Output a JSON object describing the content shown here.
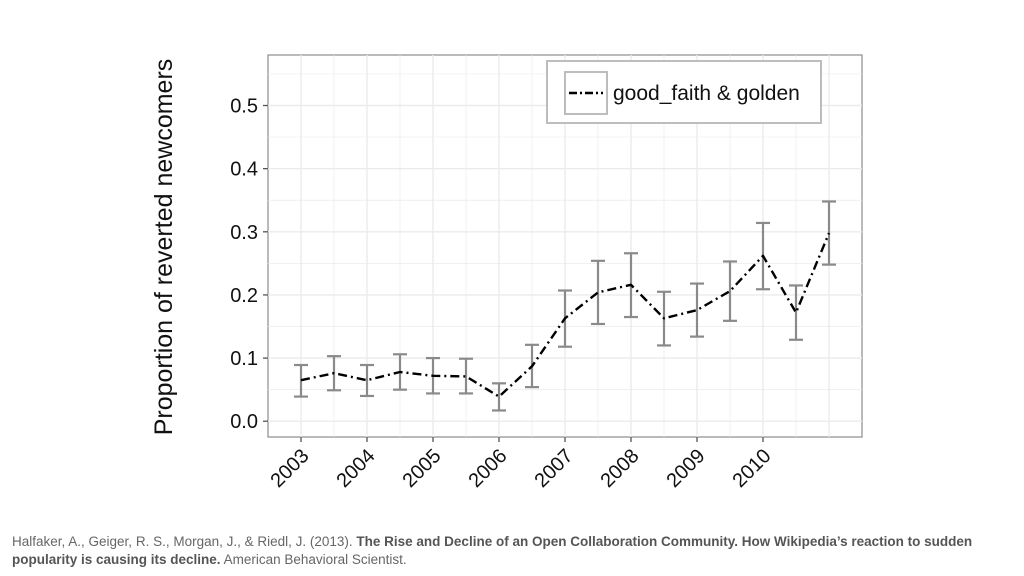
{
  "chart_data": {
    "type": "line",
    "title": "",
    "xlabel": "",
    "ylabel": "Proportion of reverted newcomers",
    "x_tick_labels": [
      "2003",
      "2004",
      "2005",
      "2006",
      "2007",
      "2008",
      "2009",
      "2010"
    ],
    "x": [
      2003,
      2003.5,
      2004,
      2004.5,
      2005,
      2005.5,
      2006,
      2006.5,
      2007,
      2007.5,
      2008,
      2008.5,
      2009,
      2009.5,
      2010,
      2010.5,
      2011
    ],
    "y_ticks": [
      "0.0",
      "0.1",
      "0.2",
      "0.3",
      "0.4",
      "0.5"
    ],
    "ylim": [
      -0.025,
      0.58
    ],
    "xlim": [
      2002.5,
      2011.5
    ],
    "grid": true,
    "legend_position": "top-right",
    "series": [
      {
        "name": "good_faith & golden",
        "line_style": "dash-dot",
        "color": "#000000",
        "values": [
          0.065,
          0.076,
          0.065,
          0.078,
          0.072,
          0.071,
          0.039,
          0.087,
          0.163,
          0.204,
          0.216,
          0.163,
          0.176,
          0.206,
          0.262,
          0.172,
          0.298
        ],
        "error_low": [
          0.039,
          0.049,
          0.04,
          0.05,
          0.044,
          0.044,
          0.017,
          0.054,
          0.118,
          0.154,
          0.165,
          0.12,
          0.134,
          0.159,
          0.209,
          0.129,
          0.248
        ],
        "error_high": [
          0.089,
          0.103,
          0.089,
          0.106,
          0.1,
          0.099,
          0.06,
          0.121,
          0.207,
          0.254,
          0.266,
          0.205,
          0.218,
          0.253,
          0.314,
          0.215,
          0.348
        ]
      }
    ],
    "colors": {
      "panel": "#ffffff",
      "grid": "#ebebeb",
      "errorbar": "#8a8a8a",
      "line": "#000000"
    }
  },
  "citation": {
    "authors": "Halfaker, A., Geiger, R. S., Morgan, J., & Riedl, J. (2013). ",
    "title": "The Rise and Decline of an Open Collaboration Community. How Wikipedia’s reaction to sudden popularity is causing its decline.",
    "journal": " American Behavioral Scientist."
  }
}
